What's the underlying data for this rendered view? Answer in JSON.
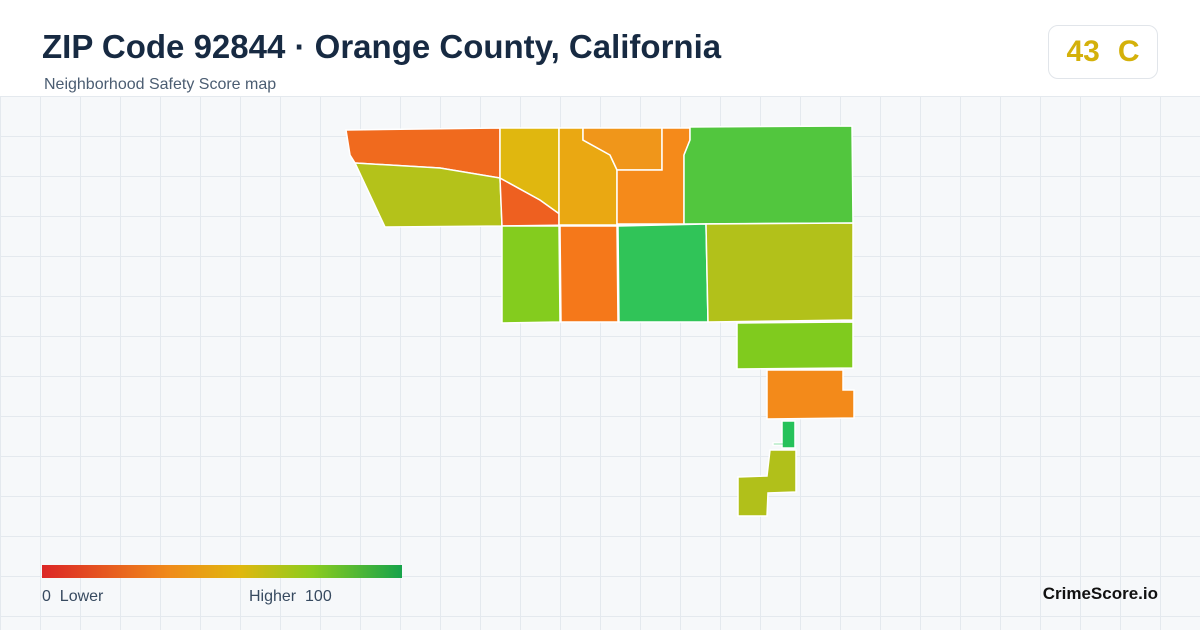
{
  "header": {
    "title": "ZIP Code 92844 · Orange County, California",
    "subtitle": "Neighborhood Safety Score map"
  },
  "score": {
    "value": 43,
    "grade": "C"
  },
  "legend": {
    "min": 0,
    "min_label": "Lower",
    "max_label": "Higher",
    "max": 100
  },
  "brand": "CrimeScore.io"
}
